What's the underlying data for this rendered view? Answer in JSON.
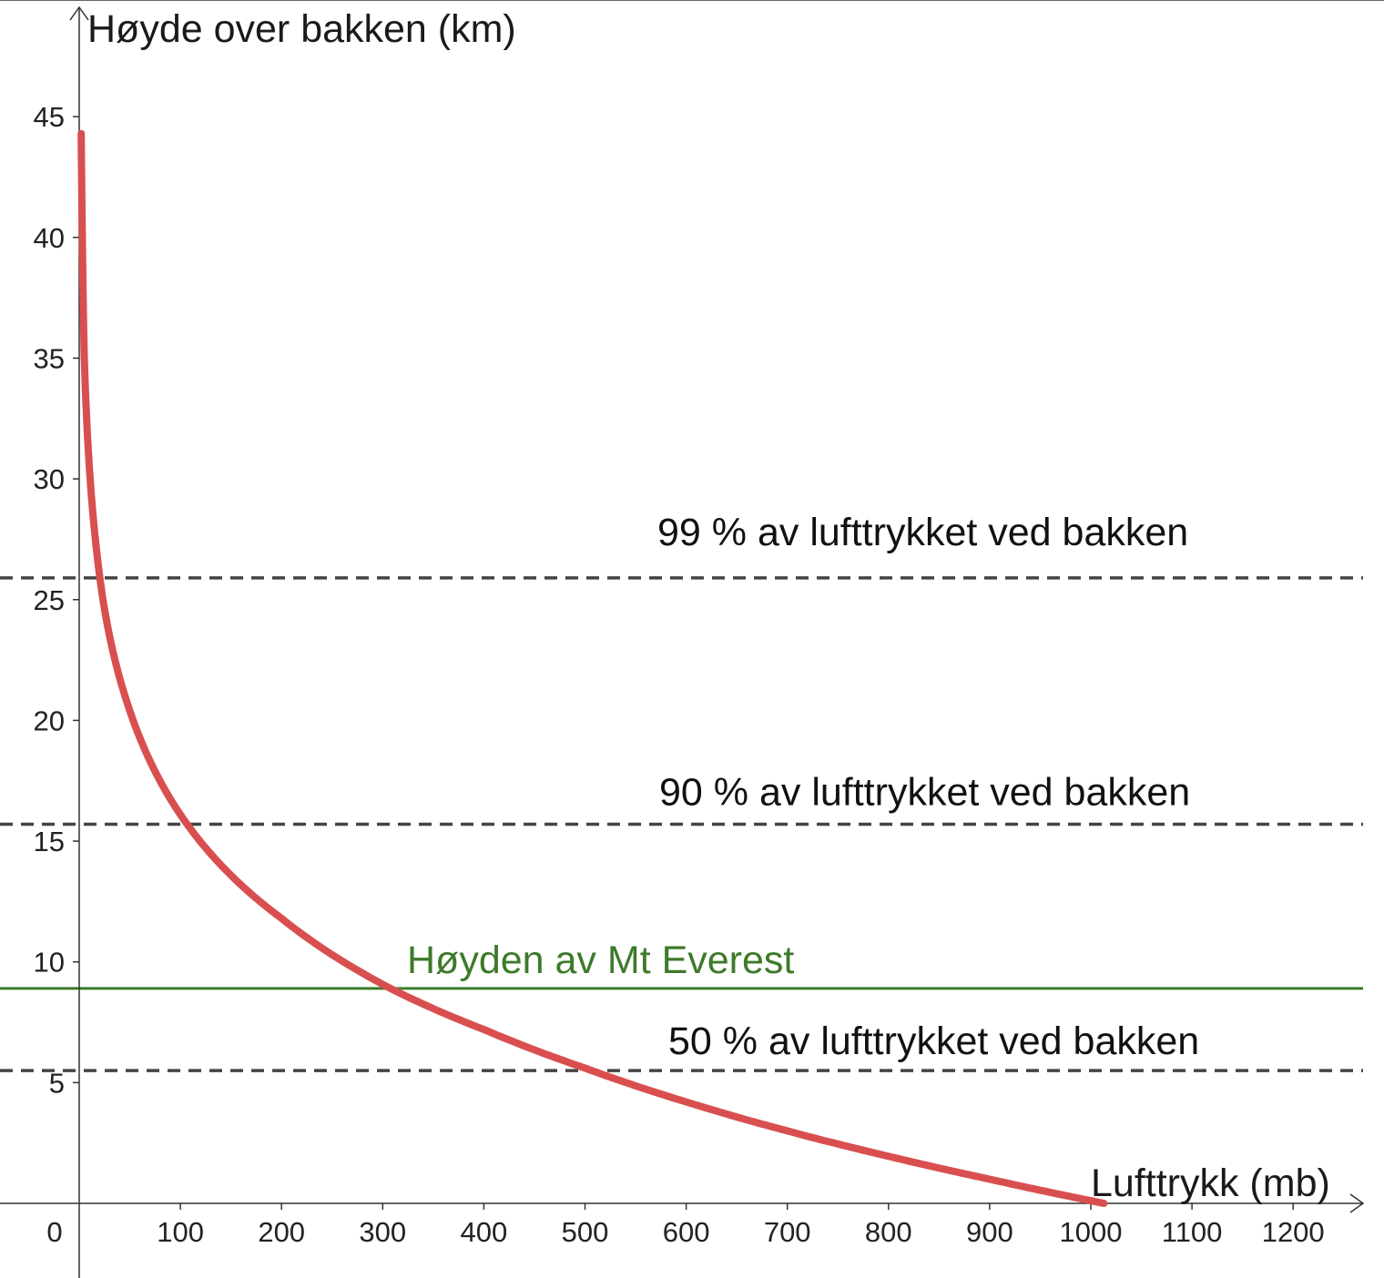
{
  "chart_data": {
    "type": "line",
    "xlabel": "Lufttrykk (mb)",
    "ylabel": "Høyde over bakken (km)",
    "xlim": [
      0,
      1270
    ],
    "ylim": [
      -3,
      49
    ],
    "x_ticks": [
      0,
      100,
      200,
      300,
      400,
      500,
      600,
      700,
      800,
      900,
      1000,
      1100,
      1200
    ],
    "y_ticks": [
      5,
      10,
      15,
      20,
      25,
      30,
      35,
      40,
      45
    ],
    "origin_label": "0",
    "grid": false,
    "series": [
      {
        "color": "#d94f4f",
        "x": [
          1013,
          900,
          800,
          700,
          600,
          500,
          400,
          310,
          200,
          100,
          50,
          25,
          10,
          5,
          2
        ],
        "y": [
          0,
          1.0,
          1.95,
          3.0,
          4.2,
          5.6,
          7.2,
          8.85,
          11.8,
          16.1,
          20.4,
          24.6,
          30.5,
          35.0,
          44.3
        ]
      }
    ],
    "reference_lines": [
      {
        "y": 25.9,
        "style": "dashed",
        "color": "#444444",
        "label": "99 % av lufttrykket ved bakken"
      },
      {
        "y": 15.7,
        "style": "dashed",
        "color": "#444444",
        "label": "90 % av lufttrykket ved bakken"
      },
      {
        "y": 8.9,
        "style": "solid",
        "color": "#3d7a2a",
        "label": "Høyden av Mt Everest"
      },
      {
        "y": 5.5,
        "style": "dashed",
        "color": "#444444",
        "label": "50 % av lufttrykket ved bakken"
      }
    ]
  }
}
